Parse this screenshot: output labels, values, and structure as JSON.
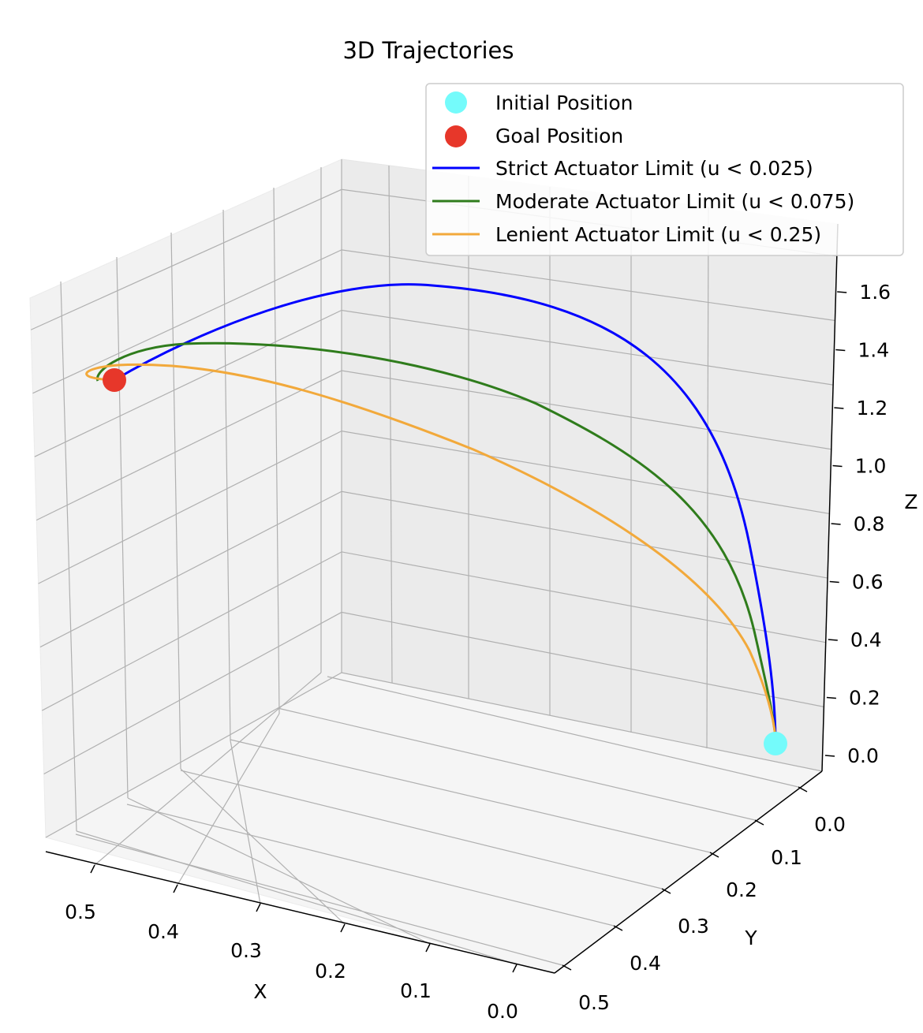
{
  "chart_data": {
    "type": "line",
    "projection": "3d",
    "title": "3D Trajectories",
    "xlabel": "X",
    "ylabel": "Y",
    "zlabel": "Z",
    "xlim": [
      0.0,
      0.53
    ],
    "ylim": [
      0.0,
      0.53
    ],
    "zlim": [
      0.0,
      1.7
    ],
    "x_ticks": [
      "0.5",
      "0.4",
      "0.3",
      "0.2",
      "0.1",
      "0.0"
    ],
    "y_ticks": [
      "0.0",
      "0.1",
      "0.2",
      "0.3",
      "0.4",
      "0.5"
    ],
    "z_ticks": [
      "0.0",
      "0.2",
      "0.4",
      "0.6",
      "0.8",
      "1.0",
      "1.2",
      "1.4",
      "1.6"
    ],
    "grid": true,
    "legend_position": "top-right",
    "points": [
      {
        "name": "Initial Position",
        "color": "#74fbfb",
        "x": 0.0,
        "y": 0.0,
        "z": 0.0
      },
      {
        "name": "Goal Position",
        "color": "#e7372a",
        "x": 0.5,
        "y": 0.5,
        "z": 1.5
      }
    ],
    "series": [
      {
        "name": "Strict Actuator Limit (u < 0.025)",
        "color": "#0000ff",
        "peak_z": 1.68,
        "end_x": 0.5,
        "end_y": 0.5,
        "end_z": 1.5
      },
      {
        "name": "Moderate Actuator Limit (u < 0.075)",
        "color": "#2f7c1c",
        "peak_z": 1.56,
        "end_x": 0.5,
        "end_y": 0.5,
        "end_z": 1.5
      },
      {
        "name": "Lenient Actuator Limit (u < 0.25)",
        "color": "#f2a93b",
        "peak_z": 1.5,
        "end_x": 0.5,
        "end_y": 0.5,
        "end_z": 1.5
      }
    ]
  }
}
